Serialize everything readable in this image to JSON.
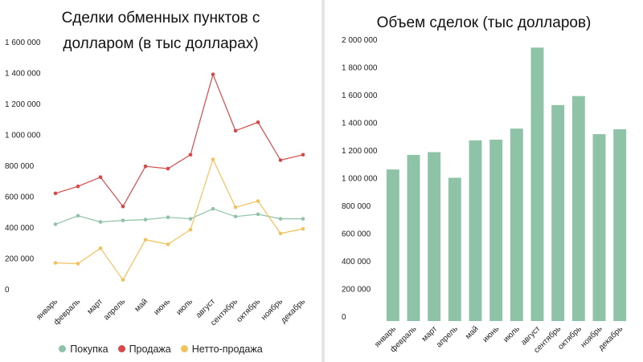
{
  "chart_data": [
    {
      "type": "line",
      "title_line1": "Сделки обменных пунктов с",
      "title_line2": "долларом (в тыс долларах)",
      "categories": [
        "январь",
        "февраль",
        "март",
        "апрель",
        "май",
        "июнь",
        "июль",
        "август",
        "сентябрь",
        "октябрь",
        "ноябрь",
        "декабрь"
      ],
      "ylim": [
        0,
        1600000
      ],
      "yticks": [
        0,
        200000,
        400000,
        600000,
        800000,
        1000000,
        1200000,
        1400000,
        1600000
      ],
      "ytick_labels": [
        "0",
        "200 000",
        "400 000",
        "600 000",
        "800 000",
        "1 000 000",
        "1 200 000",
        "1 400 000",
        "1 600 000"
      ],
      "grid": false,
      "legend_position": "bottom",
      "series": [
        {
          "name": "Покупка",
          "color": "#8fc3a8",
          "values": [
            450000,
            505000,
            465000,
            475000,
            480000,
            495000,
            485000,
            550000,
            500000,
            515000,
            485000,
            485000
          ]
        },
        {
          "name": "Продажа",
          "color": "#d94848",
          "values": [
            650000,
            695000,
            755000,
            565000,
            825000,
            810000,
            900000,
            1420000,
            1055000,
            1110000,
            865000,
            900000
          ]
        },
        {
          "name": "Нетто-продажа",
          "color": "#f2c25c",
          "values": [
            200000,
            195000,
            295000,
            90000,
            350000,
            320000,
            415000,
            870000,
            560000,
            600000,
            390000,
            420000
          ]
        }
      ]
    },
    {
      "type": "bar",
      "title": "Объем сделок (тыс долларов)",
      "categories": [
        "январь",
        "февраль",
        "март",
        "апрель",
        "май",
        "июнь",
        "июль",
        "август",
        "сентябрь",
        "октябрь",
        "ноябрь",
        "декабрь"
      ],
      "ylim": [
        0,
        2000000
      ],
      "yticks": [
        0,
        200000,
        400000,
        600000,
        800000,
        1000000,
        1200000,
        1400000,
        1600000,
        1800000,
        2000000
      ],
      "ytick_labels": [
        "0",
        "200 000",
        "400 000",
        "600 000",
        "800 000",
        "1 000 000",
        "1 200 000",
        "1 400 000",
        "1 600 000",
        "1 800 000",
        "2 000 000"
      ],
      "grid": false,
      "bar_color": "#8fc3a8",
      "values": [
        1095000,
        1200000,
        1220000,
        1035000,
        1305000,
        1310000,
        1390000,
        1975000,
        1560000,
        1625000,
        1350000,
        1385000
      ]
    }
  ]
}
